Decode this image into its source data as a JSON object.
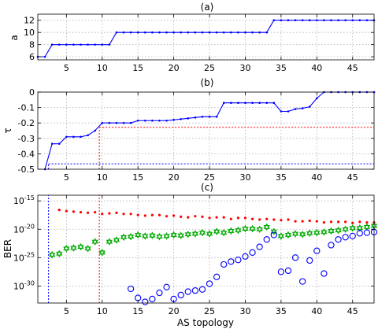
{
  "chart_data": [
    {
      "panel_label": "(a)",
      "type": "line",
      "ylabel": "a",
      "xlim": [
        1,
        48
      ],
      "ylim": [
        5.5,
        13
      ],
      "xticks": [
        5,
        10,
        15,
        20,
        25,
        30,
        35,
        40,
        45
      ],
      "yticks": [
        6,
        8,
        10,
        12
      ],
      "grid": true,
      "series": [
        {
          "color": "#0000ff",
          "marker": "dot",
          "x": [
            1,
            2,
            3,
            4,
            5,
            6,
            7,
            8,
            9,
            10,
            11,
            12,
            13,
            14,
            15,
            16,
            17,
            18,
            19,
            20,
            21,
            22,
            23,
            24,
            25,
            26,
            27,
            28,
            29,
            30,
            31,
            32,
            33,
            34,
            35,
            36,
            37,
            38,
            39,
            40,
            41,
            42,
            43,
            44,
            45,
            46,
            47,
            48
          ],
          "y": [
            6,
            6,
            8,
            8,
            8,
            8,
            8,
            8,
            8,
            8,
            8,
            10,
            10,
            10,
            10,
            10,
            10,
            10,
            10,
            10,
            10,
            10,
            10,
            10,
            10,
            10,
            10,
            10,
            10,
            10,
            10,
            10,
            10,
            12,
            12,
            12,
            12,
            12,
            12,
            12,
            12,
            12,
            12,
            12,
            12,
            12,
            12,
            12
          ]
        }
      ]
    },
    {
      "panel_label": "(b)",
      "type": "line",
      "ylabel": "τ",
      "xlim": [
        1,
        48
      ],
      "ylim": [
        -0.5,
        0
      ],
      "xticks": [
        5,
        10,
        15,
        20,
        25,
        30,
        35,
        40,
        45
      ],
      "yticks": [
        -0.5,
        -0.4,
        -0.3,
        -0.2,
        -0.1,
        0
      ],
      "grid": true,
      "series": [
        {
          "color": "#0000ff",
          "marker": "dot",
          "x": [
            2,
            3,
            4,
            5,
            6,
            7,
            8,
            9,
            10,
            11,
            12,
            13,
            14,
            15,
            16,
            17,
            18,
            19,
            20,
            21,
            22,
            23,
            24,
            25,
            26,
            27,
            28,
            29,
            30,
            31,
            32,
            33,
            34,
            35,
            36,
            37,
            38,
            39,
            40,
            41,
            42,
            43,
            44,
            45,
            46,
            47,
            48
          ],
          "y": [
            -0.5,
            -0.335,
            -0.335,
            -0.29,
            -0.29,
            -0.29,
            -0.28,
            -0.25,
            -0.2,
            -0.2,
            -0.2,
            -0.2,
            -0.2,
            -0.185,
            -0.185,
            -0.185,
            -0.185,
            -0.185,
            -0.18,
            -0.175,
            -0.17,
            -0.165,
            -0.16,
            -0.16,
            -0.16,
            -0.07,
            -0.07,
            -0.07,
            -0.07,
            -0.07,
            -0.07,
            -0.07,
            -0.07,
            -0.125,
            -0.125,
            -0.11,
            -0.105,
            -0.095,
            -0.04,
            0,
            0,
            0,
            0,
            0,
            0,
            0,
            0
          ]
        }
      ],
      "reference_lines": [
        {
          "color": "#ff0000",
          "orientation": "horizontal",
          "y": -0.228,
          "x_from": 9.6,
          "x_to": 48
        },
        {
          "color": "#ff0000",
          "orientation": "vertical",
          "x": 9.6,
          "y_from": -0.5,
          "y_to": -0.228
        },
        {
          "color": "#0000ff",
          "orientation": "horizontal",
          "y": -0.465,
          "x_from": 2.5,
          "x_to": 48
        },
        {
          "color": "#0000ff",
          "orientation": "vertical",
          "x": 2.5,
          "y_from": -0.5,
          "y_to": -0.465
        }
      ]
    },
    {
      "panel_label": "(c)",
      "type": "scatter",
      "ylabel": "BER",
      "xlabel": "AS topology",
      "xlim": [
        1,
        48
      ],
      "ylim_log10": [
        -33,
        -14
      ],
      "yscale": "log",
      "xticks": [
        5,
        10,
        15,
        20,
        25,
        30,
        35,
        40,
        45
      ],
      "yticks": [
        "10^-15",
        "10^-20",
        "10^-25",
        "10^-30"
      ],
      "grid": true,
      "series": [
        {
          "color": "#ff0000",
          "marker": "dot",
          "x": [
            4,
            5,
            6,
            7,
            8,
            9,
            10,
            11,
            12,
            13,
            14,
            15,
            16,
            17,
            18,
            19,
            20,
            21,
            22,
            23,
            24,
            25,
            26,
            27,
            28,
            29,
            30,
            31,
            32,
            33,
            34,
            35,
            36,
            37,
            38,
            39,
            40,
            41,
            42,
            43,
            44,
            45,
            46,
            47,
            48
          ],
          "y_log10": [
            -16.6,
            -16.8,
            -16.9,
            -17.0,
            -17.1,
            -17.0,
            -17.3,
            -17.2,
            -17.1,
            -17.3,
            -17.3,
            -17.5,
            -17.6,
            -17.5,
            -17.5,
            -17.7,
            -17.6,
            -17.8,
            -17.9,
            -17.7,
            -17.8,
            -18.0,
            -17.9,
            -17.9,
            -18.2,
            -18.0,
            -18.0,
            -18.2,
            -18.3,
            -18.2,
            -18.3,
            -18.4,
            -18.3,
            -18.6,
            -18.6,
            -18.5,
            -18.6,
            -18.8,
            -18.7,
            -18.7,
            -18.7,
            -18.9,
            -18.7,
            -18.8,
            -18.8
          ]
        },
        {
          "color": "#00aa00",
          "marker": "hexagram",
          "x": [
            3,
            4,
            5,
            6,
            7,
            8,
            9,
            10,
            11,
            12,
            13,
            14,
            15,
            16,
            17,
            18,
            19,
            20,
            21,
            22,
            23,
            24,
            25,
            26,
            27,
            28,
            29,
            30,
            31,
            32,
            33,
            34,
            35,
            36,
            37,
            38,
            39,
            40,
            41,
            42,
            43,
            44,
            45,
            46,
            47,
            48
          ],
          "y_log10": [
            -24.5,
            -24.3,
            -23.4,
            -23.3,
            -23.1,
            -23.4,
            -22.2,
            -24.1,
            -22.2,
            -21.9,
            -21.4,
            -21.3,
            -21.0,
            -21.2,
            -21.1,
            -21.3,
            -21.2,
            -21.0,
            -21.1,
            -20.9,
            -20.8,
            -20.6,
            -20.8,
            -20.4,
            -20.6,
            -20.3,
            -20.2,
            -19.9,
            -19.9,
            -20.0,
            -19.6,
            -20.4,
            -21.2,
            -21.0,
            -20.8,
            -20.9,
            -20.7,
            -20.6,
            -20.5,
            -20.3,
            -20.2,
            -20.0,
            -19.8,
            -19.8,
            -19.6,
            -19.4
          ]
        },
        {
          "color": "#0000ff",
          "marker": "circle",
          "x": [
            14,
            15,
            16,
            17,
            18,
            19,
            20,
            21,
            22,
            23,
            24,
            25,
            26,
            27,
            28,
            29,
            30,
            31,
            32,
            33,
            34,
            35,
            36,
            37,
            38,
            39,
            40,
            41,
            42,
            43,
            44,
            45,
            46,
            47,
            48
          ],
          "y_log10": [
            -30.5,
            -32.1,
            -32.8,
            -32.3,
            -31.2,
            -30.2,
            -32.3,
            -31.6,
            -31.0,
            -30.8,
            -30.6,
            -29.6,
            -28.4,
            -26.2,
            -25.7,
            -25.4,
            -24.8,
            -24.1,
            -23.1,
            -21.8,
            -21.0,
            -27.5,
            -27.3,
            -25.0,
            -29.2,
            -25.5,
            -23.8,
            -27.8,
            -22.8,
            -21.8,
            -21.4,
            -21.2,
            -20.7,
            -20.6,
            -20.5
          ]
        }
      ],
      "reference_lines": [
        {
          "color": "#0000ff",
          "orientation": "vertical",
          "x": 2.5
        },
        {
          "color": "#ff0000",
          "orientation": "vertical",
          "x": 9.6
        }
      ]
    }
  ]
}
